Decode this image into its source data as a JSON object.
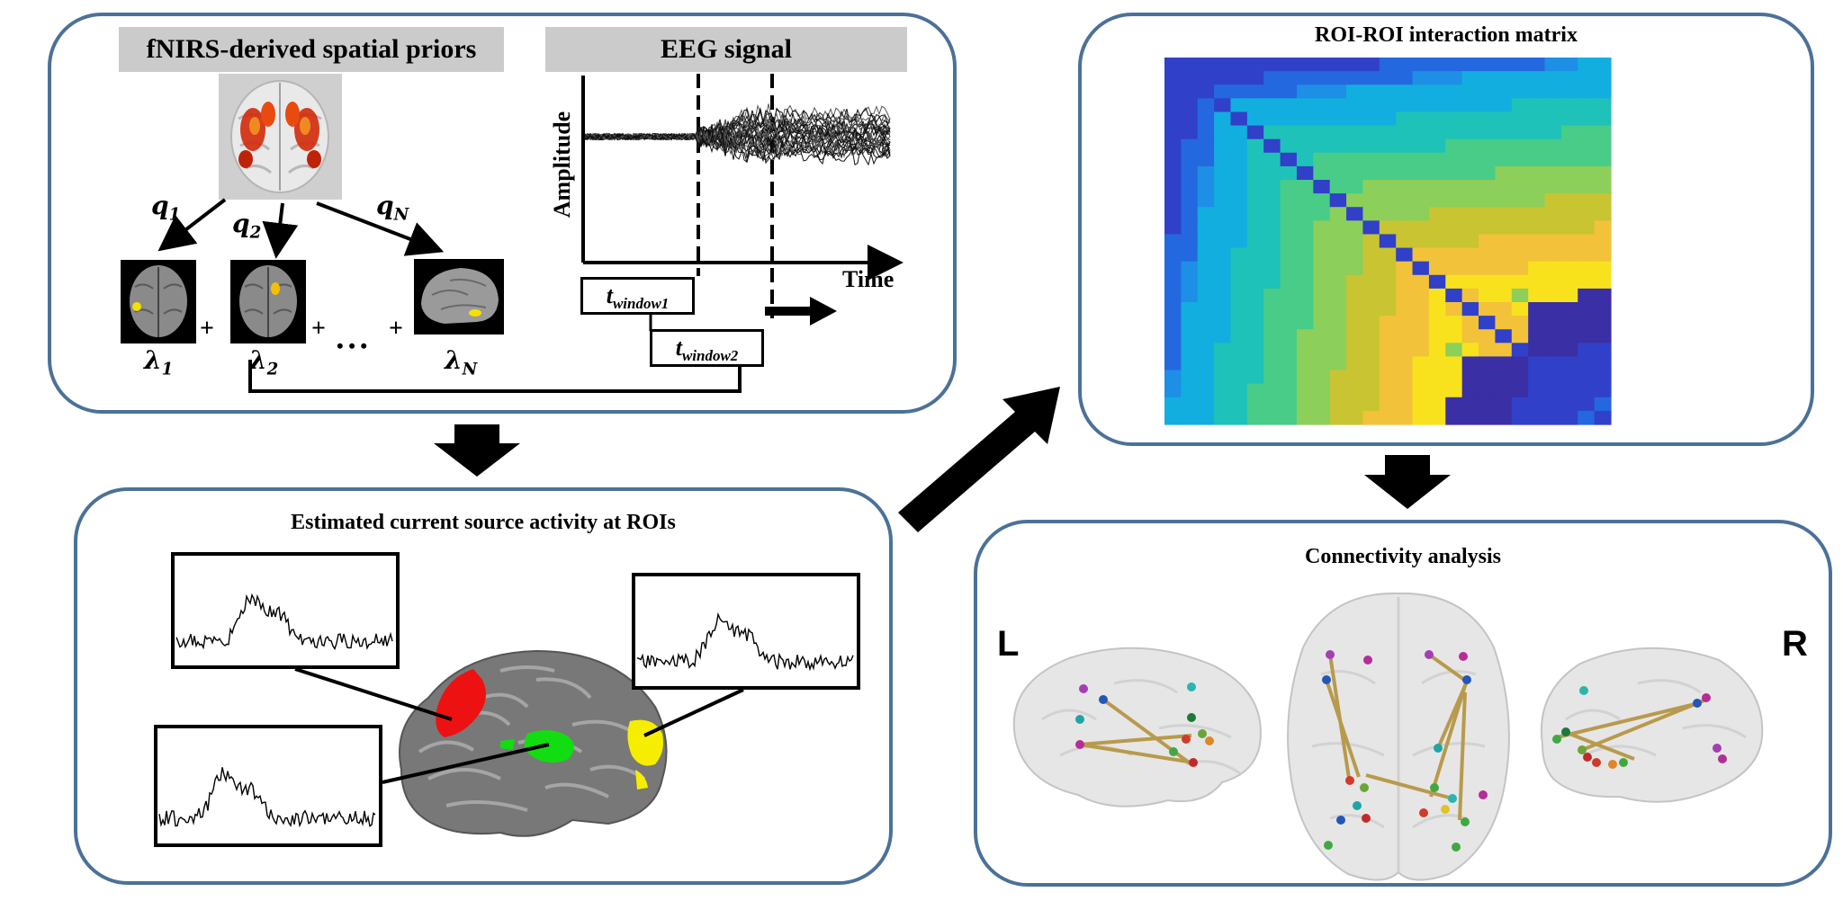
{
  "panels": {
    "priors": {
      "fnirs_header": "fNIRS-derived spatial priors",
      "eeg_header": "EEG signal",
      "q_labels": [
        "q",
        "q",
        "q"
      ],
      "q_subs": [
        "1",
        "2",
        "N"
      ],
      "lambda_labels": [
        "λ",
        "λ",
        "λ"
      ],
      "lambda_subs": [
        "1",
        "2",
        "N"
      ],
      "plus": "+",
      "ellipsis": "• • •",
      "amplitude_label": "Amplitude",
      "time_label": "Time",
      "window1": {
        "t": "t",
        "sub": "window1"
      },
      "window2": {
        "t": "t",
        "sub": "window2"
      }
    },
    "source": {
      "title": "Estimated current source activity at ROIs"
    },
    "matrix": {
      "title": "ROI-ROI interaction matrix"
    },
    "connectivity": {
      "title": "Connectivity analysis",
      "left_label": "L",
      "right_label": "R"
    }
  },
  "colors": {
    "panel_border": "#4b7199",
    "header_bg": "#cbcbcb",
    "roi_red": "#ee1111",
    "roi_green": "#11dd11",
    "roi_yellow": "#f5ee00",
    "edge_gold": "#b89a4c"
  }
}
